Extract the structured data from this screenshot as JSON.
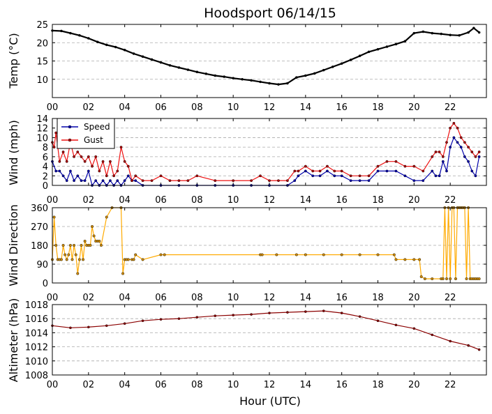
{
  "figure": {
    "title": "Hoodsport 06/14/15",
    "xlabel": "Hour (UTC)"
  },
  "colors": {
    "temp_line": "#000000",
    "speed_line": "#0000aa",
    "gust_line": "#ee1111",
    "direction_line": "#ffaa00",
    "altimeter_line": "#8b0000",
    "grid": "#aaaaaa"
  },
  "chart_data": [
    {
      "id": "temp",
      "type": "line",
      "ylabel": "Temp (°C)",
      "ylim": [
        5,
        25
      ],
      "yticks": [
        10,
        15,
        20,
        25
      ],
      "xlim": [
        0,
        24
      ],
      "xticks": [
        "00",
        "02",
        "04",
        "06",
        "08",
        "10",
        "12",
        "14",
        "16",
        "18",
        "20",
        "22"
      ],
      "grid": "horizontal dashed",
      "series": [
        {
          "key": "temp",
          "x": [
            0,
            0.5,
            1,
            1.5,
            2,
            2.5,
            3,
            3.5,
            4,
            4.5,
            5,
            5.5,
            6,
            6.5,
            7,
            7.5,
            8,
            8.5,
            9,
            9.5,
            10,
            10.5,
            11,
            11.5,
            12,
            12.5,
            13,
            13.5,
            14,
            14.5,
            15,
            15.5,
            16,
            16.5,
            17,
            17.5,
            18,
            18.5,
            19,
            19.5,
            20,
            20.5,
            21,
            21.5,
            22,
            22.5,
            23,
            23.3,
            23.6
          ],
          "y": [
            23.3,
            23.2,
            22.6,
            22.0,
            21.2,
            20.2,
            19.4,
            18.8,
            18.0,
            17.0,
            16.2,
            15.4,
            14.6,
            13.8,
            13.2,
            12.6,
            12.0,
            11.5,
            11.0,
            10.7,
            10.3,
            10.0,
            9.7,
            9.3,
            8.9,
            8.6,
            8.9,
            10.5,
            11.0,
            11.6,
            12.5,
            13.4,
            14.3,
            15.3,
            16.4,
            17.5,
            18.2,
            18.9,
            19.6,
            20.4,
            22.6,
            23.0,
            22.6,
            22.4,
            22.1,
            22.0,
            22.8,
            24.0,
            22.8
          ]
        }
      ]
    },
    {
      "id": "wind",
      "type": "line",
      "ylabel": "Wind (mph)",
      "ylim": [
        0,
        14
      ],
      "yticks": [
        0,
        2,
        4,
        6,
        8,
        10,
        12,
        14
      ],
      "xlim": [
        0,
        24
      ],
      "xticks": [
        "00",
        "02",
        "04",
        "06",
        "08",
        "10",
        "12",
        "14",
        "16",
        "18",
        "20",
        "22"
      ],
      "grid": "horizontal dashed",
      "legend": {
        "position": "top-left",
        "entries": [
          "Speed",
          "Gust"
        ]
      },
      "series": [
        {
          "key": "speed",
          "name": "Speed",
          "x": [
            0,
            0.2,
            0.4,
            0.6,
            0.8,
            1.0,
            1.2,
            1.4,
            1.6,
            1.8,
            2.0,
            2.2,
            2.4,
            2.6,
            2.8,
            3.0,
            3.2,
            3.4,
            3.6,
            3.8,
            4.0,
            4.2,
            4.4,
            4.6,
            5,
            6,
            7,
            8,
            9,
            10,
            11,
            12,
            13,
            13.4,
            13.6,
            14,
            14.4,
            14.8,
            15.2,
            15.6,
            16,
            16.5,
            17,
            17.5,
            18,
            18.5,
            19,
            19.5,
            20,
            20.5,
            21,
            21.2,
            21.4,
            21.6,
            21.8,
            22,
            22.2,
            22.4,
            22.6,
            22.8,
            23,
            23.2,
            23.4,
            23.6
          ],
          "y": [
            5,
            3,
            3,
            2,
            1,
            3,
            1,
            2,
            1,
            1,
            3,
            0,
            1,
            0,
            1,
            0,
            1,
            0,
            1,
            0,
            1,
            2,
            1,
            1,
            0,
            0,
            0,
            0,
            0,
            0,
            0,
            0,
            0,
            1,
            2,
            3,
            2,
            2,
            3,
            2,
            2,
            1,
            1,
            1,
            3,
            3,
            3,
            2,
            1,
            1,
            3,
            2,
            2,
            5,
            3,
            8,
            10,
            9,
            8,
            6,
            5,
            3,
            2,
            6
          ]
        },
        {
          "key": "gust",
          "name": "Gust",
          "x": [
            0,
            0.1,
            0.2,
            0.4,
            0.6,
            0.8,
            1.0,
            1.2,
            1.4,
            1.6,
            1.8,
            2.0,
            2.2,
            2.4,
            2.6,
            2.8,
            3.0,
            3.2,
            3.4,
            3.6,
            3.8,
            4.0,
            4.2,
            4.4,
            4.6,
            5,
            5.5,
            6,
            6.5,
            7,
            7.5,
            8,
            9,
            10,
            11,
            11.5,
            12,
            12.5,
            13,
            13.4,
            13.6,
            14,
            14.4,
            14.8,
            15.2,
            15.6,
            16,
            16.5,
            17,
            17.5,
            18,
            18.5,
            19,
            19.5,
            20,
            20.5,
            21,
            21.2,
            21.4,
            21.6,
            21.8,
            22,
            22.2,
            22.4,
            22.6,
            22.8,
            23,
            23.2,
            23.4,
            23.6
          ],
          "y": [
            9,
            8,
            11,
            5,
            7,
            5,
            9,
            6,
            7,
            6,
            5,
            6,
            4,
            6,
            3,
            5,
            2,
            5,
            2,
            3,
            8,
            5,
            4,
            1,
            2,
            1,
            1,
            2,
            1,
            1,
            1,
            2,
            1,
            1,
            1,
            2,
            1,
            1,
            1,
            3,
            3,
            4,
            3,
            3,
            4,
            3,
            3,
            2,
            2,
            2,
            4,
            5,
            5,
            4,
            4,
            3,
            6,
            7,
            7,
            6,
            9,
            12,
            13,
            12,
            10,
            9,
            8,
            7,
            6,
            7
          ]
        }
      ]
    },
    {
      "id": "direction",
      "type": "line",
      "ylabel": "Wind Direction",
      "ylim": [
        0,
        360
      ],
      "yticks": [
        0,
        90,
        180,
        270,
        360
      ],
      "xlim": [
        0,
        24
      ],
      "xticks": [
        "00",
        "02",
        "04",
        "06",
        "08",
        "10",
        "12",
        "14",
        "16",
        "18",
        "20",
        "22"
      ],
      "grid": "horizontal dashed",
      "series": [
        {
          "key": "direction",
          "x": [
            0,
            0.1,
            0.2,
            0.3,
            0.4,
            0.5,
            0.6,
            0.7,
            0.8,
            0.9,
            1.0,
            1.1,
            1.2,
            1.3,
            1.4,
            1.5,
            1.6,
            1.7,
            1.8,
            1.9,
            2.0,
            2.1,
            2.2,
            2.3,
            2.4,
            2.5,
            2.6,
            2.7,
            3.0,
            3.3,
            3.8,
            3.9,
            4.0,
            4.1,
            4.2,
            4.4,
            4.5,
            4.6,
            5.0,
            6.0,
            6.2,
            11.5,
            11.6,
            12.4,
            13.5,
            14,
            15,
            16,
            17,
            18,
            18.9,
            19,
            19.5,
            20,
            20.3,
            20.4,
            20.6,
            21,
            21.5,
            21.6,
            21.7,
            21.8,
            21.9,
            22,
            22.1,
            22.2,
            22.3,
            22.4,
            22.5,
            22.6,
            22.7,
            22.8,
            22.9,
            23,
            23.1,
            23.2,
            23.3,
            23.4,
            23.5,
            23.6
          ],
          "y": [
            112,
            315,
            180,
            112,
            112,
            112,
            180,
            135,
            112,
            135,
            180,
            112,
            180,
            135,
            45,
            112,
            180,
            112,
            200,
            180,
            180,
            180,
            270,
            225,
            200,
            200,
            200,
            180,
            315,
            360,
            360,
            45,
            112,
            112,
            112,
            112,
            112,
            135,
            112,
            135,
            135,
            135,
            135,
            135,
            135,
            135,
            135,
            135,
            135,
            135,
            135,
            112,
            112,
            112,
            112,
            30,
            20,
            20,
            20,
            20,
            360,
            20,
            360,
            20,
            360,
            360,
            20,
            360,
            360,
            360,
            360,
            360,
            20,
            360,
            20,
            20,
            20,
            20,
            20,
            20
          ]
        }
      ]
    },
    {
      "id": "altimeter",
      "type": "line",
      "ylabel": "Altimeter (hPa)",
      "ylim": [
        1008,
        1018
      ],
      "yticks": [
        1008,
        1010,
        1012,
        1014,
        1016,
        1018
      ],
      "xlim": [
        0,
        24
      ],
      "xticks": [
        "00",
        "02",
        "04",
        "06",
        "08",
        "10",
        "12",
        "14",
        "16",
        "18",
        "20",
        "22"
      ],
      "grid": "horizontal dashed",
      "series": [
        {
          "key": "altimeter",
          "x": [
            0,
            1,
            2,
            3,
            4,
            5,
            6,
            7,
            8,
            9,
            10,
            11,
            12,
            13,
            14,
            15,
            16,
            17,
            18,
            19,
            20,
            21,
            22,
            23,
            23.6
          ],
          "y": [
            1015.0,
            1014.7,
            1014.8,
            1015.0,
            1015.3,
            1015.7,
            1015.9,
            1016.0,
            1016.2,
            1016.4,
            1016.5,
            1016.6,
            1016.8,
            1016.9,
            1017.0,
            1017.1,
            1016.8,
            1016.3,
            1015.7,
            1015.1,
            1014.6,
            1013.7,
            1012.8,
            1012.2,
            1011.6
          ]
        }
      ]
    }
  ]
}
